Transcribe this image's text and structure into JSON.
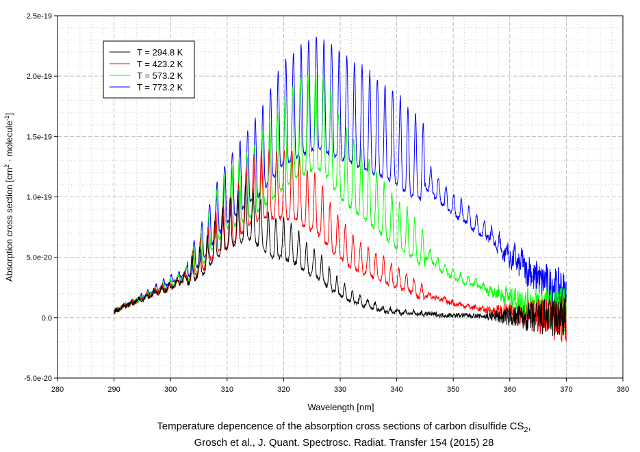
{
  "chart_data": {
    "type": "line",
    "title": "",
    "xlabel": "Wavelength [nm]",
    "ylabel": "Absorption cross section [cm² · molecule⁻¹]",
    "ylabel_parts": {
      "pre": "Absorption cross section [cm",
      "sup1": "2",
      "mid": " · molecule",
      "sup2": "-1",
      "post": "]"
    },
    "xlim": [
      280,
      380
    ],
    "ylim": [
      -5e-20,
      2.5e-19
    ],
    "grid": true,
    "legend_position": "top-left",
    "x_ticks": [
      "280",
      "290",
      "300",
      "310",
      "320",
      "330",
      "340",
      "350",
      "360",
      "370",
      "380"
    ],
    "y_ticks": [
      {
        "value": 2.5e-19,
        "label": "2.5e-19"
      },
      {
        "value": 2e-19,
        "label": "2.0e-19"
      },
      {
        "value": 1.5e-19,
        "label": "1.5e-19"
      },
      {
        "value": 1e-19,
        "label": "1.0e-19"
      },
      {
        "value": 5e-20,
        "label": "5.0e-20"
      },
      {
        "value": 0,
        "label": "0.0"
      },
      {
        "value": -5e-20,
        "label": "-5.0e-20"
      }
    ],
    "y_unit_scale": 1e-20,
    "x": [
      290,
      292,
      294,
      296,
      298,
      300,
      302,
      304,
      306,
      308,
      310,
      312,
      314,
      316,
      318,
      320,
      322,
      324,
      326,
      328,
      330,
      332,
      334,
      336,
      338,
      340,
      342,
      344,
      346,
      348,
      350,
      352,
      354,
      356,
      358,
      360,
      362,
      364,
      366,
      368,
      370
    ],
    "series": [
      {
        "name": "T = 773.2 K",
        "color": "#0000ff",
        "values": [
          0.5,
          1,
          1.5,
          2,
          2.5,
          3,
          3.5,
          4.5,
          6,
          8,
          9.5,
          10.5,
          11.5,
          12.5,
          14,
          15.5,
          16,
          16.5,
          17,
          16.5,
          16,
          15.5,
          15,
          14.5,
          14,
          13.5,
          12.5,
          12,
          11,
          10,
          9,
          8.5,
          7.5,
          7,
          6,
          5,
          4.5,
          3.5,
          3,
          2.5,
          2
        ]
      },
      {
        "name": "T = 573.2 K",
        "color": "#00ff00",
        "values": [
          0.5,
          1,
          1.4,
          1.9,
          2.4,
          2.8,
          3.3,
          4.2,
          5.5,
          7.5,
          9,
          9.5,
          10,
          11,
          12,
          13,
          14,
          14.5,
          15,
          14,
          12,
          11,
          10,
          9,
          8,
          7,
          6.5,
          5.5,
          5,
          4,
          3.5,
          3,
          2.8,
          2.3,
          2,
          1.7,
          1.4,
          1.2,
          1,
          0.8,
          0.5
        ]
      },
      {
        "name": "T = 423.2 K",
        "color": "#ff0000",
        "values": [
          0.5,
          1,
          1.4,
          1.8,
          2.3,
          2.6,
          3.1,
          4,
          5,
          6.5,
          7,
          8,
          9.5,
          10,
          10,
          10,
          10,
          9,
          8.5,
          7,
          6,
          5,
          4.5,
          4,
          3.5,
          3,
          2.7,
          2,
          1.8,
          1.5,
          1.2,
          1,
          0.8,
          0.6,
          0.5,
          0.4,
          0.3,
          0.2,
          0,
          -0.5,
          0
        ]
      },
      {
        "name": "T = 294.8 K",
        "color": "#000000",
        "values": [
          0.5,
          1,
          1.4,
          1.8,
          2.2,
          2.5,
          3.1,
          3.7,
          4.5,
          6,
          7,
          7.5,
          8,
          7,
          6,
          6,
          5.5,
          4.5,
          4,
          3,
          2.2,
          1.6,
          1.2,
          0.9,
          0.6,
          0.5,
          0.4,
          0.3,
          0.3,
          0.2,
          0.2,
          0.2,
          0.15,
          0.1,
          0.1,
          0.1,
          0.05,
          0,
          0,
          0,
          0
        ]
      }
    ],
    "caption_line1_pre": "Temperature depencence of the absorption cross sections of carbon disulfide CS",
    "caption_line1_sub": "2",
    "caption_line1_post": ",",
    "caption_line2": "Grosch et al., J. Quant. Spectrosc. Radiat. Transfer 154 (2015) 28"
  }
}
